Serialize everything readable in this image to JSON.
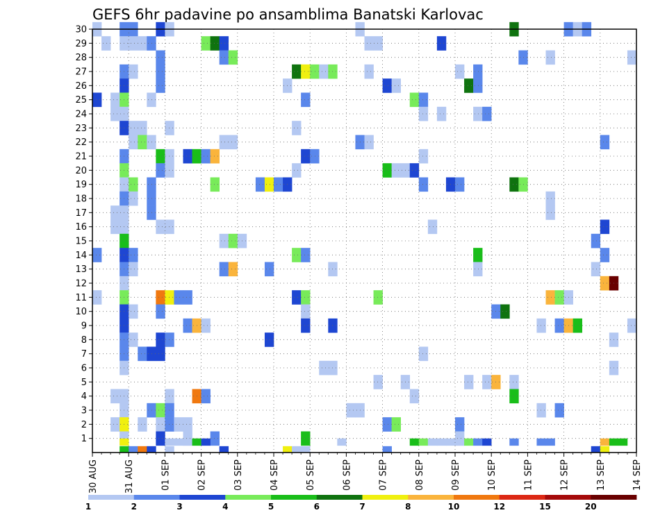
{
  "chart_data": {
    "type": "heatmap",
    "title": "GEFS 6hr padavine po ansamblima Banatski Karlovac",
    "xlabel": "",
    "ylabel": "",
    "x_range": [
      0,
      60
    ],
    "y_range": [
      0,
      30
    ],
    "y_tick_labels": [
      "1",
      "2",
      "3",
      "4",
      "5",
      "6",
      "7",
      "8",
      "9",
      "10",
      "11",
      "12",
      "13",
      "14",
      "15",
      "16",
      "17",
      "18",
      "19",
      "20",
      "21",
      "22",
      "23",
      "24",
      "25",
      "26",
      "27",
      "28",
      "29",
      "30"
    ],
    "x_tick_labels": [
      {
        "label": "30 AUG",
        "x": 0
      },
      {
        "label": "31 AUG",
        "x": 4
      },
      {
        "label": "01 SEP",
        "x": 8
      },
      {
        "label": "02 SEP",
        "x": 12
      },
      {
        "label": "03 SEP",
        "x": 16
      },
      {
        "label": "04 SEP",
        "x": 20
      },
      {
        "label": "05 SEP",
        "x": 24
      },
      {
        "label": "06 SEP",
        "x": 28
      },
      {
        "label": "07 SEP",
        "x": 32
      },
      {
        "label": "08 SEP",
        "x": 36
      },
      {
        "label": "09 SEP",
        "x": 40
      },
      {
        "label": "10 SEP",
        "x": 44
      },
      {
        "label": "11 SEP",
        "x": 48
      },
      {
        "label": "12 SEP",
        "x": 52
      },
      {
        "label": "13 SEP",
        "x": 56
      },
      {
        "label": "14 SEP",
        "x": 60
      }
    ],
    "grid": true,
    "colorbar": {
      "placement": "bottom",
      "labels": [
        "1",
        "2",
        "3",
        "4",
        "5",
        "6",
        "7",
        "8",
        "10",
        "12",
        "15",
        "20"
      ],
      "colors": [
        "#b4c8f2",
        "#5a87eb",
        "#1e46d2",
        "#78eb5a",
        "#19be19",
        "#0f730f",
        "#f0f00f",
        "#fab43c",
        "#f0780f",
        "#dc2814",
        "#a50a0a",
        "#690000"
      ]
    },
    "cells_note": "each cell = [x column index, ensemble member row, precipitation class index 0..11]",
    "cells": [
      [
        0,
        30,
        0
      ],
      [
        3,
        30,
        1
      ],
      [
        4,
        30,
        1
      ],
      [
        7,
        30,
        2
      ],
      [
        8,
        30,
        0
      ],
      [
        29,
        30,
        0
      ],
      [
        46,
        30,
        5
      ],
      [
        52,
        30,
        1
      ],
      [
        53,
        30,
        0
      ],
      [
        54,
        30,
        1
      ],
      [
        1,
        29,
        0
      ],
      [
        3,
        29,
        0
      ],
      [
        4,
        29,
        0
      ],
      [
        5,
        29,
        0
      ],
      [
        6,
        29,
        1
      ],
      [
        12,
        29,
        3
      ],
      [
        13,
        29,
        5
      ],
      [
        14,
        29,
        2
      ],
      [
        30,
        29,
        0
      ],
      [
        31,
        29,
        0
      ],
      [
        38,
        29,
        2
      ],
      [
        7,
        28,
        1
      ],
      [
        14,
        28,
        1
      ],
      [
        15,
        28,
        3
      ],
      [
        47,
        28,
        1
      ],
      [
        50,
        28,
        0
      ],
      [
        59,
        28,
        0
      ],
      [
        3,
        27,
        1
      ],
      [
        4,
        27,
        0
      ],
      [
        7,
        27,
        1
      ],
      [
        22,
        27,
        5
      ],
      [
        23,
        27,
        6
      ],
      [
        24,
        27,
        3
      ],
      [
        25,
        27,
        0
      ],
      [
        26,
        27,
        3
      ],
      [
        30,
        27,
        0
      ],
      [
        40,
        27,
        0
      ],
      [
        42,
        27,
        1
      ],
      [
        3,
        26,
        2
      ],
      [
        7,
        26,
        1
      ],
      [
        21,
        26,
        0
      ],
      [
        32,
        26,
        2
      ],
      [
        33,
        26,
        0
      ],
      [
        41,
        26,
        5
      ],
      [
        42,
        26,
        1
      ],
      [
        0,
        25,
        2
      ],
      [
        2,
        25,
        0
      ],
      [
        3,
        25,
        3
      ],
      [
        6,
        25,
        0
      ],
      [
        23,
        25,
        1
      ],
      [
        35,
        25,
        3
      ],
      [
        36,
        25,
        1
      ],
      [
        2,
        24,
        0
      ],
      [
        3,
        24,
        0
      ],
      [
        36,
        24,
        0
      ],
      [
        38,
        24,
        0
      ],
      [
        42,
        24,
        0
      ],
      [
        43,
        24,
        1
      ],
      [
        3,
        23,
        2
      ],
      [
        4,
        23,
        0
      ],
      [
        5,
        23,
        0
      ],
      [
        8,
        23,
        0
      ],
      [
        22,
        23,
        0
      ],
      [
        4,
        22,
        0
      ],
      [
        5,
        22,
        3
      ],
      [
        6,
        22,
        0
      ],
      [
        14,
        22,
        0
      ],
      [
        15,
        22,
        0
      ],
      [
        29,
        22,
        1
      ],
      [
        30,
        22,
        0
      ],
      [
        56,
        22,
        1
      ],
      [
        3,
        21,
        1
      ],
      [
        7,
        21,
        4
      ],
      [
        8,
        21,
        0
      ],
      [
        10,
        21,
        2
      ],
      [
        11,
        21,
        4
      ],
      [
        12,
        21,
        1
      ],
      [
        13,
        21,
        7
      ],
      [
        23,
        21,
        2
      ],
      [
        24,
        21,
        1
      ],
      [
        36,
        21,
        0
      ],
      [
        3,
        20,
        3
      ],
      [
        7,
        20,
        1
      ],
      [
        8,
        20,
        0
      ],
      [
        22,
        20,
        0
      ],
      [
        32,
        20,
        4
      ],
      [
        33,
        20,
        0
      ],
      [
        34,
        20,
        0
      ],
      [
        35,
        20,
        2
      ],
      [
        3,
        19,
        0
      ],
      [
        4,
        19,
        3
      ],
      [
        6,
        19,
        1
      ],
      [
        13,
        19,
        3
      ],
      [
        18,
        19,
        1
      ],
      [
        19,
        19,
        6
      ],
      [
        20,
        19,
        1
      ],
      [
        21,
        19,
        2
      ],
      [
        36,
        19,
        1
      ],
      [
        39,
        19,
        2
      ],
      [
        40,
        19,
        1
      ],
      [
        46,
        19,
        5
      ],
      [
        47,
        19,
        3
      ],
      [
        3,
        18,
        1
      ],
      [
        4,
        18,
        0
      ],
      [
        6,
        18,
        1
      ],
      [
        50,
        18,
        0
      ],
      [
        2,
        17,
        0
      ],
      [
        3,
        17,
        0
      ],
      [
        6,
        17,
        1
      ],
      [
        50,
        17,
        0
      ],
      [
        2,
        16,
        0
      ],
      [
        3,
        16,
        0
      ],
      [
        7,
        16,
        0
      ],
      [
        8,
        16,
        0
      ],
      [
        37,
        16,
        0
      ],
      [
        56,
        16,
        2
      ],
      [
        3,
        15,
        4
      ],
      [
        14,
        15,
        0
      ],
      [
        15,
        15,
        3
      ],
      [
        16,
        15,
        0
      ],
      [
        55,
        15,
        1
      ],
      [
        0,
        14,
        1
      ],
      [
        3,
        14,
        2
      ],
      [
        4,
        14,
        1
      ],
      [
        22,
        14,
        3
      ],
      [
        23,
        14,
        1
      ],
      [
        42,
        14,
        4
      ],
      [
        56,
        14,
        1
      ],
      [
        3,
        13,
        1
      ],
      [
        4,
        13,
        0
      ],
      [
        14,
        13,
        1
      ],
      [
        15,
        13,
        7
      ],
      [
        19,
        13,
        1
      ],
      [
        26,
        13,
        0
      ],
      [
        42,
        13,
        0
      ],
      [
        55,
        13,
        0
      ],
      [
        3,
        12,
        0
      ],
      [
        56,
        12,
        7
      ],
      [
        57,
        12,
        11
      ],
      [
        0,
        11,
        0
      ],
      [
        3,
        11,
        3
      ],
      [
        7,
        11,
        8
      ],
      [
        8,
        11,
        6
      ],
      [
        9,
        11,
        1
      ],
      [
        10,
        11,
        1
      ],
      [
        22,
        11,
        2
      ],
      [
        23,
        11,
        3
      ],
      [
        31,
        11,
        3
      ],
      [
        50,
        11,
        7
      ],
      [
        51,
        11,
        3
      ],
      [
        52,
        11,
        0
      ],
      [
        3,
        10,
        2
      ],
      [
        4,
        10,
        0
      ],
      [
        7,
        10,
        1
      ],
      [
        23,
        10,
        0
      ],
      [
        44,
        10,
        1
      ],
      [
        45,
        10,
        5
      ],
      [
        3,
        9,
        2
      ],
      [
        10,
        9,
        1
      ],
      [
        11,
        9,
        7
      ],
      [
        12,
        9,
        0
      ],
      [
        23,
        9,
        2
      ],
      [
        26,
        9,
        2
      ],
      [
        49,
        9,
        0
      ],
      [
        51,
        9,
        1
      ],
      [
        52,
        9,
        7
      ],
      [
        53,
        9,
        4
      ],
      [
        59,
        9,
        0
      ],
      [
        3,
        8,
        1
      ],
      [
        4,
        8,
        0
      ],
      [
        7,
        8,
        2
      ],
      [
        8,
        8,
        1
      ],
      [
        19,
        8,
        2
      ],
      [
        57,
        8,
        0
      ],
      [
        3,
        7,
        1
      ],
      [
        5,
        7,
        1
      ],
      [
        6,
        7,
        2
      ],
      [
        7,
        7,
        2
      ],
      [
        36,
        7,
        0
      ],
      [
        3,
        6,
        0
      ],
      [
        25,
        6,
        0
      ],
      [
        26,
        6,
        0
      ],
      [
        57,
        6,
        0
      ],
      [
        31,
        5,
        0
      ],
      [
        34,
        5,
        0
      ],
      [
        41,
        5,
        0
      ],
      [
        43,
        5,
        0
      ],
      [
        44,
        5,
        7
      ],
      [
        46,
        5,
        0
      ],
      [
        2,
        4,
        0
      ],
      [
        3,
        4,
        0
      ],
      [
        8,
        4,
        0
      ],
      [
        11,
        4,
        8
      ],
      [
        12,
        4,
        1
      ],
      [
        35,
        4,
        0
      ],
      [
        46,
        4,
        4
      ],
      [
        3,
        3,
        0
      ],
      [
        6,
        3,
        1
      ],
      [
        7,
        3,
        3
      ],
      [
        8,
        3,
        1
      ],
      [
        28,
        3,
        0
      ],
      [
        29,
        3,
        0
      ],
      [
        49,
        3,
        0
      ],
      [
        51,
        3,
        1
      ],
      [
        2,
        2,
        0
      ],
      [
        3,
        2,
        6
      ],
      [
        5,
        2,
        0
      ],
      [
        7,
        2,
        0
      ],
      [
        8,
        2,
        1
      ],
      [
        9,
        2,
        0
      ],
      [
        10,
        2,
        0
      ],
      [
        32,
        2,
        1
      ],
      [
        33,
        2,
        3
      ],
      [
        40,
        2,
        1
      ],
      [
        3,
        1,
        0
      ],
      [
        7,
        1,
        2
      ],
      [
        10,
        1,
        0
      ],
      [
        13,
        1,
        1
      ],
      [
        23,
        1,
        4
      ],
      [
        40,
        1,
        0
      ],
      [
        3,
        0,
        6
      ],
      [
        8,
        0,
        0
      ],
      [
        9,
        0,
        0
      ],
      [
        10,
        0,
        0
      ],
      [
        11,
        0,
        4
      ],
      [
        12,
        0,
        2
      ],
      [
        27,
        0,
        0
      ],
      [
        35,
        0,
        4
      ],
      [
        36,
        0,
        3
      ],
      [
        37,
        0,
        0
      ],
      [
        38,
        0,
        0
      ],
      [
        39,
        0,
        0
      ],
      [
        40,
        0,
        0
      ],
      [
        41,
        0,
        3
      ],
      [
        42,
        0,
        1
      ],
      [
        43,
        0,
        2
      ],
      [
        46,
        0,
        1
      ],
      [
        49,
        0,
        1
      ],
      [
        50,
        0,
        1
      ],
      [
        56,
        0,
        7
      ],
      [
        57,
        0,
        4
      ],
      [
        58,
        0,
        4
      ],
      [
        3,
        -1,
        4
      ],
      [
        4,
        -1,
        1
      ],
      [
        5,
        -1,
        8
      ],
      [
        6,
        -1,
        2
      ],
      [
        8,
        -1,
        0
      ],
      [
        14,
        -1,
        2
      ],
      [
        21,
        -1,
        6
      ],
      [
        22,
        -1,
        0
      ],
      [
        23,
        -1,
        0
      ],
      [
        32,
        -1,
        1
      ],
      [
        55,
        -1,
        2
      ],
      [
        56,
        -1,
        6
      ]
    ]
  }
}
